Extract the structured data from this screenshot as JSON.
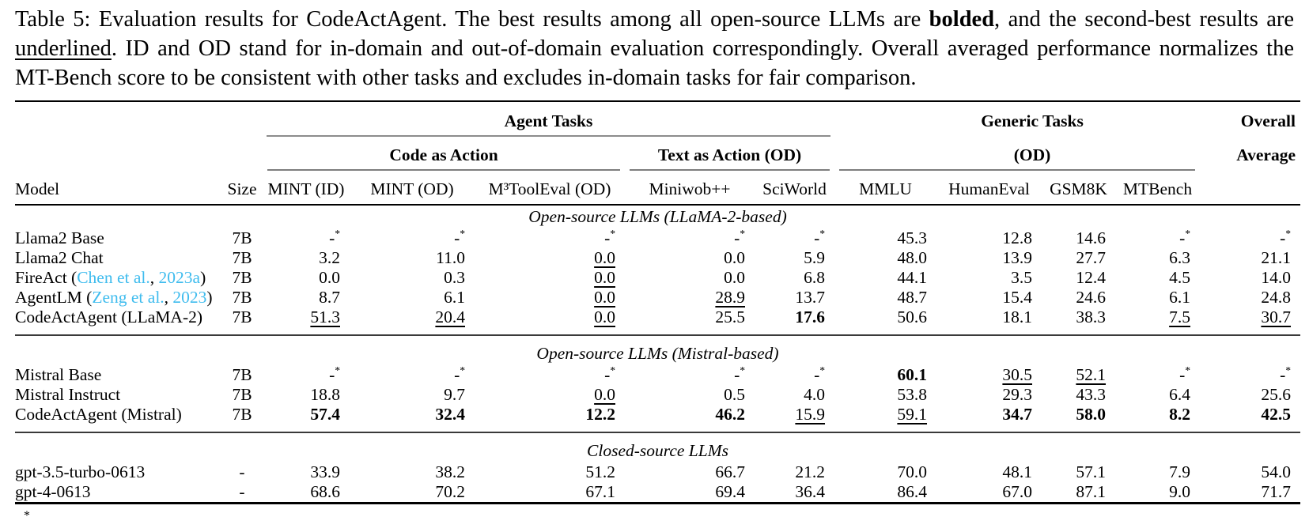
{
  "caption": {
    "part1": "Table 5: Evaluation results for CodeActAgent. The best results among all open-source LLMs are ",
    "bold_word": "bolded",
    "part2": ", and the second-best results are ",
    "underlined_word": "underlined",
    "part3": ". ID and OD stand for in-domain and out-of-domain evaluation correspondingly. Overall averaged performance normalizes the MT-Bench score to be consistent with other tasks and excludes in-domain tasks for fair comparison."
  },
  "table": {
    "group_headers": {
      "agent_tasks": "Agent Tasks",
      "generic_tasks": "Generic Tasks",
      "overall": "Overall",
      "average": "Average",
      "code_as_action": "Code as Action",
      "text_as_action": "Text as Action (OD)",
      "od": "(OD)"
    },
    "columns": [
      "Model",
      "Size",
      "MINT (ID)",
      "MINT (OD)",
      "M³ToolEval (OD)",
      "Miniwob++",
      "SciWorld",
      "MMLU",
      "HumanEval",
      "GSM8K",
      "MTBench"
    ],
    "sections": [
      {
        "label": "Open-source LLMs (LLaMA-2-based)",
        "rows": [
          {
            "model": [
              {
                "t": "Llama2 Base"
              }
            ],
            "size": "7B",
            "values": [
              {
                "v": "-",
                "star": true
              },
              {
                "v": "-",
                "star": true
              },
              {
                "v": "-",
                "star": true
              },
              {
                "v": "-",
                "star": true
              },
              {
                "v": "-",
                "star": true
              },
              {
                "v": "45.3"
              },
              {
                "v": "12.8"
              },
              {
                "v": "14.6"
              },
              {
                "v": "-",
                "star": true
              },
              {
                "v": "-",
                "star": true
              }
            ]
          },
          {
            "model": [
              {
                "t": "Llama2 Chat"
              }
            ],
            "size": "7B",
            "values": [
              {
                "v": "3.2"
              },
              {
                "v": "11.0"
              },
              {
                "v": "0.0",
                "u": true
              },
              {
                "v": "0.0"
              },
              {
                "v": "5.9"
              },
              {
                "v": "48.0"
              },
              {
                "v": "13.9"
              },
              {
                "v": "27.7"
              },
              {
                "v": "6.3"
              },
              {
                "v": "21.1"
              }
            ]
          },
          {
            "model": [
              {
                "t": "FireAct ("
              },
              {
                "t": "Chen et al.",
                "cite": true
              },
              {
                "t": ", "
              },
              {
                "t": "2023a",
                "cite": true
              },
              {
                "t": ")"
              }
            ],
            "size": "7B",
            "values": [
              {
                "v": "0.0"
              },
              {
                "v": "0.3"
              },
              {
                "v": "0.0",
                "u": true
              },
              {
                "v": "0.0"
              },
              {
                "v": "6.8"
              },
              {
                "v": "44.1"
              },
              {
                "v": "3.5"
              },
              {
                "v": "12.4"
              },
              {
                "v": "4.5"
              },
              {
                "v": "14.0"
              }
            ]
          },
          {
            "model": [
              {
                "t": "AgentLM ("
              },
              {
                "t": "Zeng et al.",
                "cite": true
              },
              {
                "t": ", "
              },
              {
                "t": "2023",
                "cite": true
              },
              {
                "t": ")"
              }
            ],
            "size": "7B",
            "values": [
              {
                "v": "8.7"
              },
              {
                "v": "6.1"
              },
              {
                "v": "0.0",
                "u": true
              },
              {
                "v": "28.9",
                "u": true
              },
              {
                "v": "13.7"
              },
              {
                "v": "48.7"
              },
              {
                "v": "15.4"
              },
              {
                "v": "24.6"
              },
              {
                "v": "6.1"
              },
              {
                "v": "24.8"
              }
            ]
          },
          {
            "model": [
              {
                "t": "CodeActAgent (LLaMA-2)"
              }
            ],
            "size": "7B",
            "values": [
              {
                "v": "51.3",
                "u": true
              },
              {
                "v": "20.4",
                "u": true
              },
              {
                "v": "0.0",
                "u": true
              },
              {
                "v": "25.5"
              },
              {
                "v": "17.6",
                "b": true
              },
              {
                "v": "50.6"
              },
              {
                "v": "18.1"
              },
              {
                "v": "38.3"
              },
              {
                "v": "7.5",
                "u": true
              },
              {
                "v": "30.7",
                "u": true
              }
            ]
          }
        ]
      },
      {
        "label": "Open-source LLMs (Mistral-based)",
        "rows": [
          {
            "model": [
              {
                "t": "Mistral Base"
              }
            ],
            "size": "7B",
            "values": [
              {
                "v": "-",
                "star": true
              },
              {
                "v": "-",
                "star": true
              },
              {
                "v": "-",
                "star": true
              },
              {
                "v": "-",
                "star": true
              },
              {
                "v": "-",
                "star": true
              },
              {
                "v": "60.1",
                "b": true
              },
              {
                "v": "30.5",
                "u": true
              },
              {
                "v": "52.1",
                "u": true
              },
              {
                "v": "-",
                "star": true
              },
              {
                "v": "-",
                "star": true
              }
            ]
          },
          {
            "model": [
              {
                "t": "Mistral Instruct"
              }
            ],
            "size": "7B",
            "values": [
              {
                "v": "18.8"
              },
              {
                "v": "9.7"
              },
              {
                "v": "0.0",
                "u": true
              },
              {
                "v": "0.5"
              },
              {
                "v": "4.0"
              },
              {
                "v": "53.8"
              },
              {
                "v": "29.3"
              },
              {
                "v": "43.3"
              },
              {
                "v": "6.4"
              },
              {
                "v": "25.6"
              }
            ]
          },
          {
            "model": [
              {
                "t": "CodeActAgent (Mistral)"
              }
            ],
            "size": "7B",
            "values": [
              {
                "v": "57.4",
                "b": true
              },
              {
                "v": "32.4",
                "b": true
              },
              {
                "v": "12.2",
                "b": true
              },
              {
                "v": "46.2",
                "b": true
              },
              {
                "v": "15.9",
                "u": true
              },
              {
                "v": "59.1",
                "u": true
              },
              {
                "v": "34.7",
                "b": true
              },
              {
                "v": "58.0",
                "b": true
              },
              {
                "v": "8.2",
                "b": true
              },
              {
                "v": "42.5",
                "b": true
              }
            ]
          }
        ]
      },
      {
        "label": "Closed-source LLMs",
        "rows": [
          {
            "model": [
              {
                "t": "gpt-3.5-turbo-0613"
              }
            ],
            "size": "-",
            "values": [
              {
                "v": "33.9"
              },
              {
                "v": "38.2"
              },
              {
                "v": "51.2"
              },
              {
                "v": "66.7"
              },
              {
                "v": "21.2"
              },
              {
                "v": "70.0"
              },
              {
                "v": "48.1"
              },
              {
                "v": "57.1"
              },
              {
                "v": "7.9"
              },
              {
                "v": "54.0"
              }
            ]
          },
          {
            "model": [
              {
                "t": "gpt-4-0613"
              }
            ],
            "size": "-",
            "values": [
              {
                "v": "68.6"
              },
              {
                "v": "70.2"
              },
              {
                "v": "67.1"
              },
              {
                "v": "69.4"
              },
              {
                "v": "36.4"
              },
              {
                "v": "86.4"
              },
              {
                "v": "67.0"
              },
              {
                "v": "87.1"
              },
              {
                "v": "9.0"
              },
              {
                "v": "71.7"
              }
            ]
          }
        ]
      }
    ]
  },
  "footnote": {
    "marker": "*"
  }
}
